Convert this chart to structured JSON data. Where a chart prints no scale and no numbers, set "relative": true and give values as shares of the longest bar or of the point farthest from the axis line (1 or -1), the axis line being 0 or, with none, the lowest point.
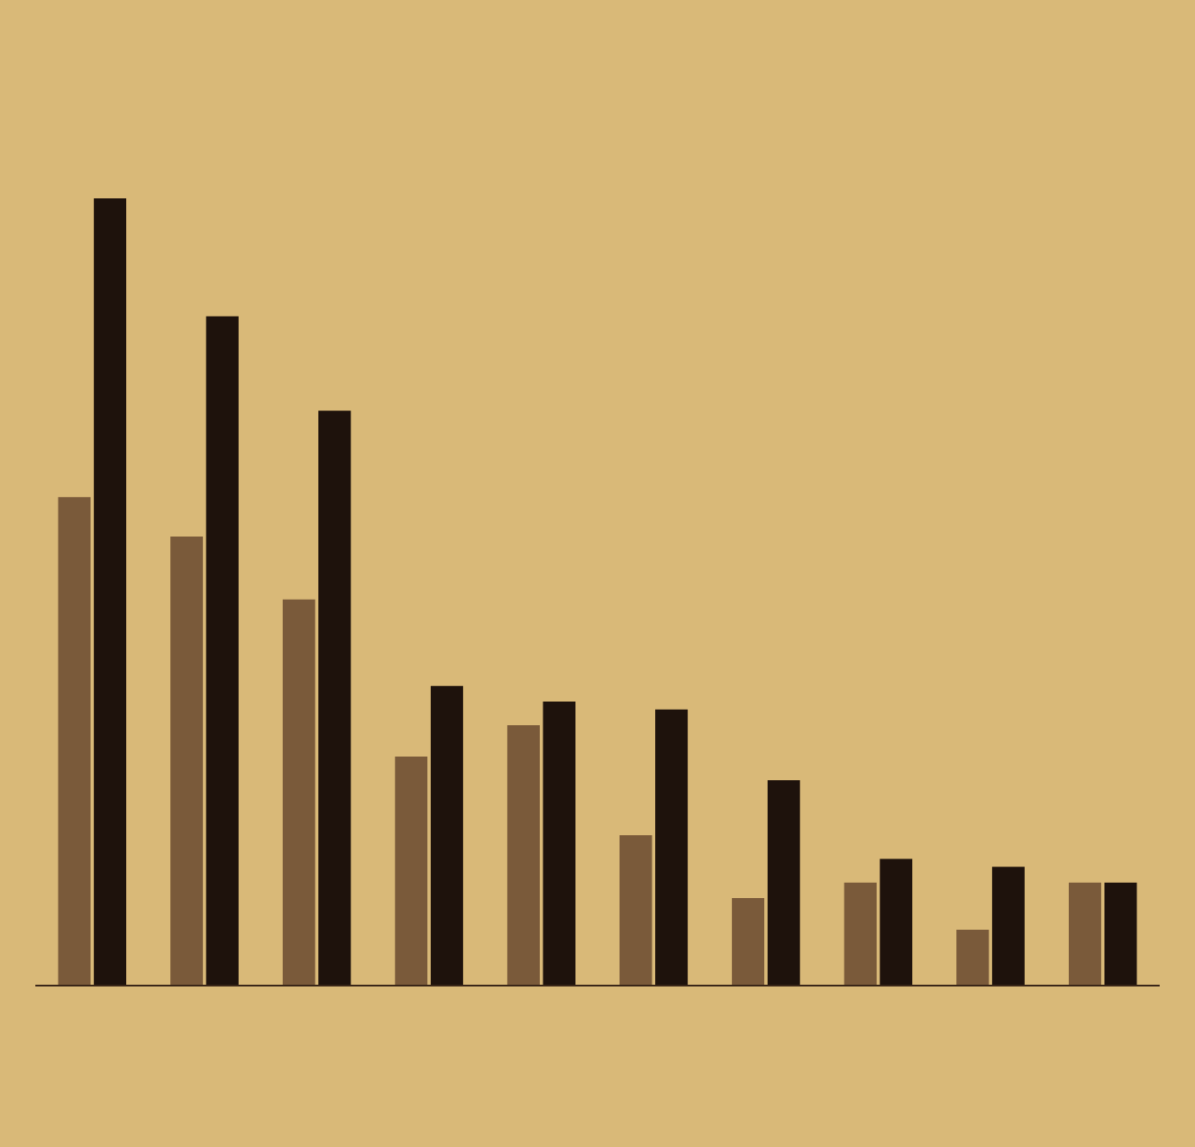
{
  "chart_data": {
    "type": "bar",
    "relative": true,
    "categories": [
      null,
      null,
      null,
      null,
      null,
      null,
      null,
      null,
      null,
      null
    ],
    "series": [
      {
        "color": "#7a5a3a",
        "values": [
          0.62,
          0.57,
          0.49,
          0.29,
          0.33,
          0.19,
          0.11,
          0.13,
          0.07,
          0.13
        ]
      },
      {
        "color": "#1e120c",
        "values": [
          1,
          0.85,
          0.73,
          0.38,
          0.36,
          0.35,
          0.26,
          0.16,
          0.15,
          0.13
        ]
      }
    ]
  }
}
